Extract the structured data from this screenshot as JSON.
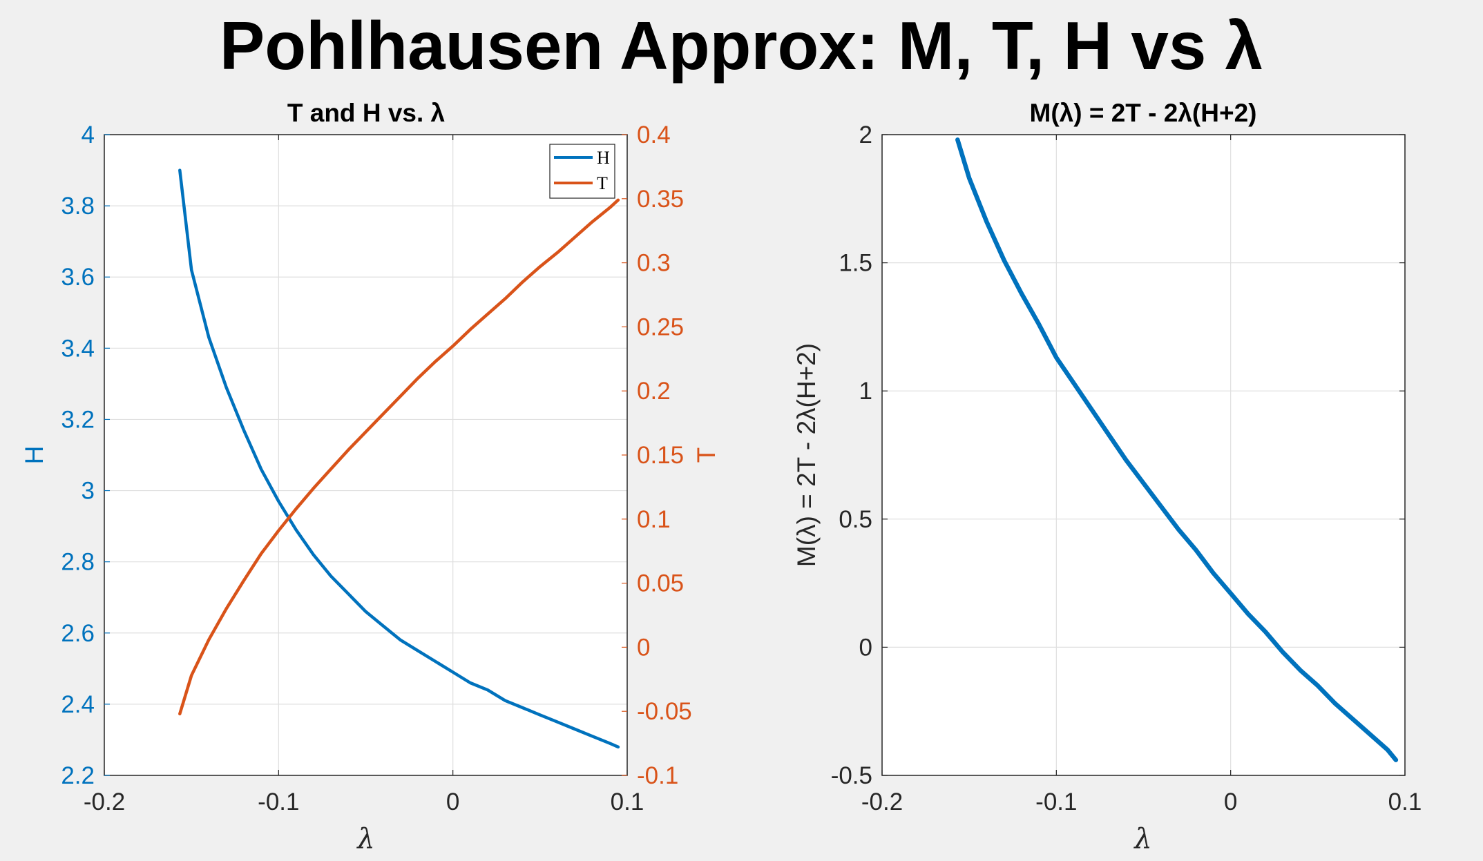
{
  "figure": {
    "title": "Pohlhausen Approx: M, T, H vs λ"
  },
  "chart_data": [
    {
      "type": "line",
      "title": "T and H vs. λ",
      "xlabel": "λ",
      "ylabel_left": "H",
      "ylabel_right": "T",
      "xlim": [
        -0.2,
        0.1
      ],
      "ylim_left": [
        2.2,
        4.0
      ],
      "ylim_right": [
        -0.1,
        0.4
      ],
      "xticks": [
        "-0.2",
        "-0.1",
        "0",
        "0.1"
      ],
      "yticks_left": [
        "2.2",
        "2.4",
        "2.6",
        "2.8",
        "3",
        "3.2",
        "3.4",
        "3.6",
        "3.8",
        "4"
      ],
      "yticks_right": [
        "-0.1",
        "-0.05",
        "0",
        "0.05",
        "0.1",
        "0.15",
        "0.2",
        "0.25",
        "0.3",
        "0.35",
        "0.4"
      ],
      "grid": true,
      "legend": {
        "position": "top-right",
        "entries": [
          "H",
          "T"
        ]
      },
      "series": [
        {
          "name": "H",
          "axis": "left",
          "color": "#0072BD",
          "x": [
            -0.1567,
            -0.15,
            -0.14,
            -0.13,
            -0.12,
            -0.11,
            -0.1,
            -0.09,
            -0.08,
            -0.07,
            -0.06,
            -0.05,
            -0.04,
            -0.03,
            -0.02,
            -0.01,
            0.0,
            0.01,
            0.02,
            0.03,
            0.04,
            0.05,
            0.06,
            0.07,
            0.08,
            0.09,
            0.0948
          ],
          "values": [
            3.9,
            3.62,
            3.43,
            3.29,
            3.17,
            3.06,
            2.97,
            2.89,
            2.82,
            2.76,
            2.71,
            2.66,
            2.62,
            2.58,
            2.55,
            2.52,
            2.49,
            2.46,
            2.44,
            2.41,
            2.39,
            2.37,
            2.35,
            2.33,
            2.31,
            2.29,
            2.28
          ]
        },
        {
          "name": "T",
          "axis": "right",
          "color": "#D95319",
          "x": [
            -0.1567,
            -0.15,
            -0.14,
            -0.13,
            -0.12,
            -0.11,
            -0.1,
            -0.09,
            -0.08,
            -0.07,
            -0.06,
            -0.05,
            -0.04,
            -0.03,
            -0.02,
            -0.01,
            0.0,
            0.01,
            0.02,
            0.03,
            0.04,
            0.05,
            0.06,
            0.07,
            0.08,
            0.09,
            0.0948
          ],
          "values": [
            -0.052,
            -0.022,
            0.006,
            0.03,
            0.052,
            0.073,
            0.091,
            0.108,
            0.124,
            0.139,
            0.154,
            0.168,
            0.182,
            0.196,
            0.21,
            0.223,
            0.235,
            0.248,
            0.26,
            0.272,
            0.285,
            0.297,
            0.308,
            0.32,
            0.332,
            0.343,
            0.349
          ]
        }
      ]
    },
    {
      "type": "line",
      "title": "M(λ) = 2T - 2λ(H+2)",
      "xlabel": "λ",
      "ylabel": "M(λ) = 2T - 2λ(H+2)",
      "xlim": [
        -0.2,
        0.1
      ],
      "ylim": [
        -0.5,
        2.0
      ],
      "xticks": [
        "-0.2",
        "-0.1",
        "0",
        "0.1"
      ],
      "yticks": [
        "-0.5",
        "0",
        "0.5",
        "1",
        "1.5",
        "2"
      ],
      "grid": true,
      "series": [
        {
          "color": "#0072BD",
          "x": [
            -0.1567,
            -0.15,
            -0.14,
            -0.13,
            -0.12,
            -0.11,
            -0.1,
            -0.09,
            -0.08,
            -0.07,
            -0.06,
            -0.05,
            -0.04,
            -0.03,
            -0.02,
            -0.01,
            0.0,
            0.01,
            0.02,
            0.03,
            0.04,
            0.05,
            0.06,
            0.07,
            0.08,
            0.09,
            0.0948
          ],
          "values": [
            1.98,
            1.83,
            1.66,
            1.51,
            1.38,
            1.26,
            1.13,
            1.03,
            0.93,
            0.83,
            0.73,
            0.64,
            0.55,
            0.46,
            0.38,
            0.29,
            0.21,
            0.13,
            0.06,
            -0.02,
            -0.09,
            -0.15,
            -0.22,
            -0.28,
            -0.34,
            -0.4,
            -0.44
          ]
        }
      ]
    }
  ]
}
